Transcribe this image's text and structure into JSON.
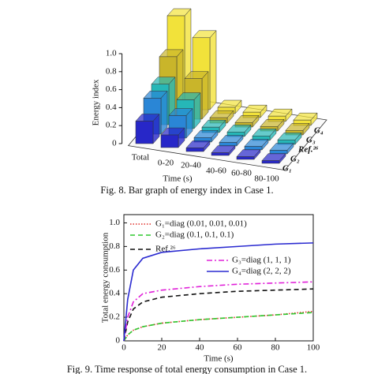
{
  "chart_data": [
    {
      "type": "bar3d",
      "caption": "Fig. 8.    Bar graph of energy index in Case 1.",
      "ylabel": "Energy index",
      "xlabel": "Time (s)",
      "categories": [
        "Total",
        "0-20",
        "20-40",
        "40-60",
        "60-80",
        "80-100"
      ],
      "ylim": [
        0,
        1
      ],
      "yticks": [
        0,
        0.2,
        0.4,
        0.6,
        0.8,
        {
          "value": 1,
          "label": "1.0"
        }
      ],
      "series": [
        {
          "name": "G₁",
          "color": "#2727c8",
          "values": [
            0.25,
            0.14,
            0.04,
            0.03,
            0.03,
            0.03
          ]
        },
        {
          "name": "G₂",
          "color": "#2a86d6",
          "values": [
            0.4,
            0.25,
            0.05,
            0.04,
            0.04,
            0.04
          ]
        },
        {
          "name": "Ref.²⁶",
          "color": "#26b7b7",
          "values": [
            0.45,
            0.32,
            0.06,
            0.05,
            0.05,
            0.05
          ]
        },
        {
          "name": "G₃",
          "color": "#c9b52a",
          "values": [
            0.65,
            0.45,
            0.06,
            0.05,
            0.05,
            0.05
          ]
        },
        {
          "name": "G₄",
          "color": "#f2e23a",
          "values": [
            1.0,
            0.8,
            0.07,
            0.06,
            0.06,
            0.06
          ]
        }
      ]
    },
    {
      "type": "line",
      "caption": "Fig. 9.    Time response of total energy consumption in Case 1.",
      "ylabel": "Total energy consumption",
      "xlabel": "Time (s)",
      "x": [
        0,
        2,
        5,
        10,
        20,
        40,
        60,
        80,
        100
      ],
      "xlim": [
        0,
        100
      ],
      "xticks": [
        0,
        20,
        40,
        60,
        80,
        100
      ],
      "ylim": [
        0,
        1.07
      ],
      "yticks": [
        0,
        0.2,
        0.4,
        0.6,
        0.8,
        {
          "value": 1,
          "label": "1.0"
        }
      ],
      "series": [
        {
          "name": "G₁=diag (0.01, 0.01, 0.01)",
          "color": "#e0302a",
          "style": "dotted",
          "values": [
            0,
            0.05,
            0.09,
            0.12,
            0.15,
            0.18,
            0.2,
            0.22,
            0.25
          ]
        },
        {
          "name": "G₂=diag (0.1, 0.1, 0.1)",
          "color": "#2fc82f",
          "style": "dashed",
          "values": [
            0,
            0.05,
            0.09,
            0.12,
            0.15,
            0.18,
            0.2,
            0.22,
            0.24
          ]
        },
        {
          "name": "Ref.²⁶",
          "color": "#111111",
          "style": "dashed",
          "values": [
            0,
            0.16,
            0.27,
            0.33,
            0.37,
            0.4,
            0.42,
            0.43,
            0.44
          ]
        },
        {
          "name": "G₃=diag (1, 1, 1)",
          "color": "#e020d8",
          "style": "dashdot",
          "values": [
            0,
            0.2,
            0.33,
            0.4,
            0.43,
            0.46,
            0.48,
            0.49,
            0.5
          ]
        },
        {
          "name": "G₄=diag (2, 2, 2)",
          "color": "#2a2ad0",
          "style": "solid",
          "values": [
            0,
            0.35,
            0.6,
            0.7,
            0.75,
            0.78,
            0.8,
            0.82,
            0.83
          ]
        }
      ]
    }
  ]
}
